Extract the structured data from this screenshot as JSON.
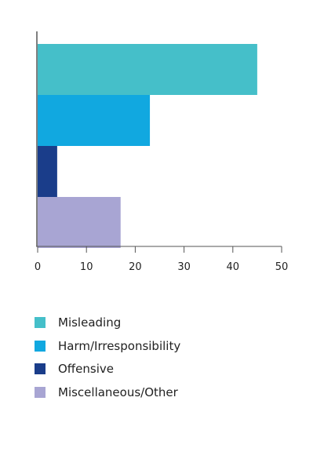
{
  "chart_data": {
    "type": "bar",
    "orientation": "horizontal",
    "categories": [
      "Misleading",
      "Harm/Irresponsibility",
      "Offensive",
      "Miscellaneous/Other"
    ],
    "values": [
      45,
      23,
      4,
      17
    ],
    "colors": [
      "#45bfc9",
      "#11a8e0",
      "#1a3d8a",
      "#a8a5d3"
    ],
    "xlim": [
      0,
      50
    ],
    "xticks": [
      0,
      10,
      20,
      30,
      40,
      50
    ],
    "title": "",
    "xlabel": "",
    "ylabel": "",
    "grid": false,
    "legend_position": "bottom"
  },
  "legend": {
    "items": [
      {
        "label": "Misleading",
        "color": "#45bfc9"
      },
      {
        "label": "Harm/Irresponsibility",
        "color": "#11a8e0"
      },
      {
        "label": "Offensive",
        "color": "#1a3d8a"
      },
      {
        "label": "Miscellaneous/Other",
        "color": "#a8a5d3"
      }
    ]
  }
}
